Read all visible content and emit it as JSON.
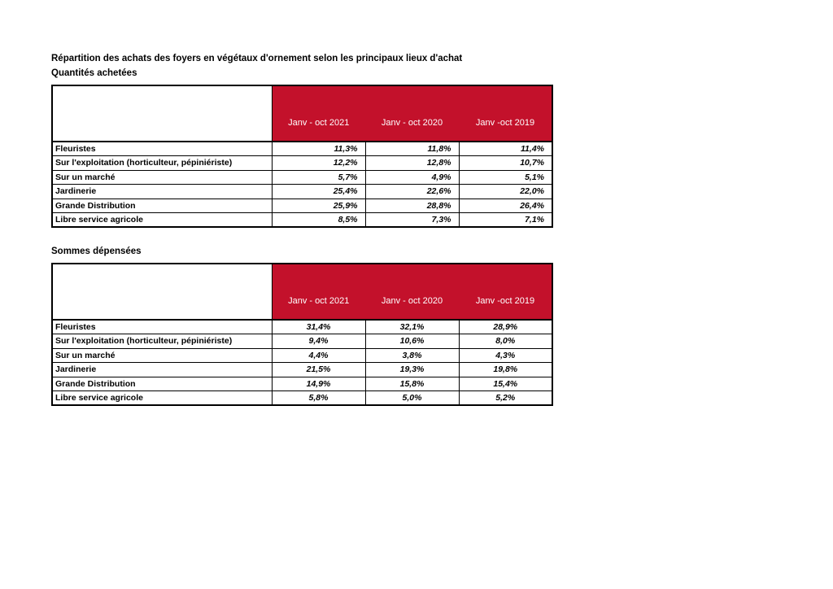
{
  "page": {
    "title": "Répartition des achats des foyers en végétaux d'ornement selon les principaux lieux d'achat"
  },
  "colors": {
    "header_red": "#c3112b",
    "header_text": "#ffffff",
    "border": "#000000",
    "background": "#ffffff"
  },
  "tables": [
    {
      "caption": "Quantités achetées",
      "value_alignment": "right",
      "columns": [
        "Janv - oct 2021",
        "Janv - oct 2020",
        "Janv -oct 2019"
      ],
      "rows": [
        {
          "label": "Fleuristes",
          "values": [
            "11,3%",
            "11,8%",
            "11,4%"
          ]
        },
        {
          "label": "Sur l'exploitation (horticulteur, pépiniériste)",
          "values": [
            "12,2%",
            "12,8%",
            "10,7%"
          ]
        },
        {
          "label": "Sur un marché",
          "values": [
            "5,7%",
            "4,9%",
            "5,1%"
          ]
        },
        {
          "label": "Jardinerie",
          "values": [
            "25,4%",
            "22,6%",
            "22,0%"
          ]
        },
        {
          "label": "Grande Distribution",
          "values": [
            "25,9%",
            "28,8%",
            "26,4%"
          ]
        },
        {
          "label": "Libre service agricole",
          "values": [
            "8,5%",
            "7,3%",
            "7,1%"
          ]
        }
      ]
    },
    {
      "caption": "Sommes dépensées",
      "value_alignment": "center",
      "columns": [
        "Janv - oct 2021",
        "Janv - oct 2020",
        "Janv -oct 2019"
      ],
      "rows": [
        {
          "label": "Fleuristes",
          "values": [
            "31,4%",
            "32,1%",
            "28,9%"
          ]
        },
        {
          "label": "Sur l'exploitation (horticulteur, pépiniériste)",
          "values": [
            "9,4%",
            "10,6%",
            "8,0%"
          ]
        },
        {
          "label": "Sur un marché",
          "values": [
            "4,4%",
            "3,8%",
            "4,3%"
          ]
        },
        {
          "label": "Jardinerie",
          "values": [
            "21,5%",
            "19,3%",
            "19,8%"
          ]
        },
        {
          "label": "Grande Distribution",
          "values": [
            "14,9%",
            "15,8%",
            "15,4%"
          ]
        },
        {
          "label": "Libre service agricole",
          "values": [
            "5,8%",
            "5,0%",
            "5,2%"
          ]
        }
      ]
    }
  ]
}
